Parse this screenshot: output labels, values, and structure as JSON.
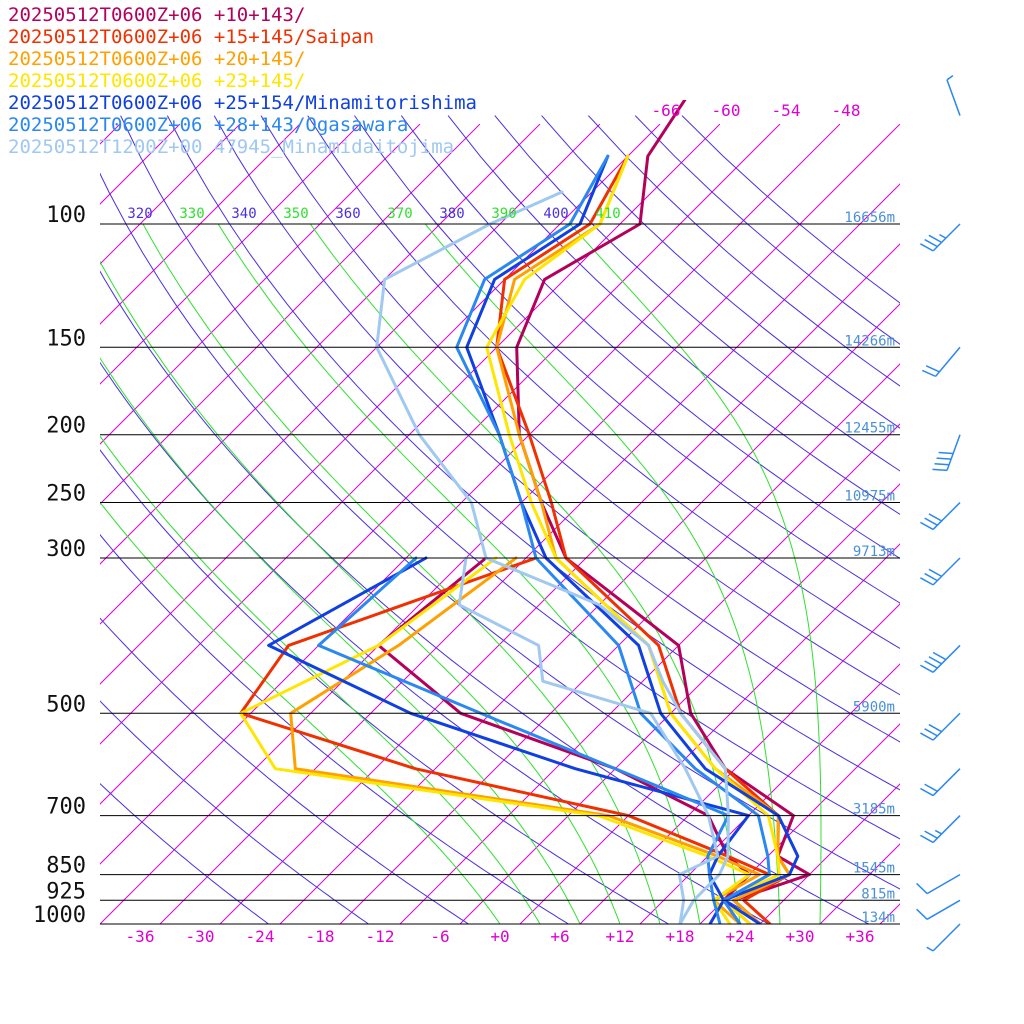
{
  "legend": [
    {
      "label": "20250512T0600Z+06 +10+143/",
      "color": "#b5005b"
    },
    {
      "label": "20250512T0600Z+06 +15+145/Saipan",
      "color": "#f03000"
    },
    {
      "label": "20250512T0600Z+06 +20+145/",
      "color": "#ffa000"
    },
    {
      "label": "20250512T0600Z+06 +23+145/",
      "color": "#ffe600"
    },
    {
      "label": "20250512T0600Z+06 +25+154/Minamitorishima",
      "color": "#1040e0"
    },
    {
      "label": "20250512T0600Z+06 +28+143/Ogasawara",
      "color": "#2a88f0"
    },
    {
      "label": "20250512T1200Z+00 47945_Minamidaitojima",
      "color": "#a0c8f0"
    }
  ],
  "colors": {
    "isotherm": "#e000d0",
    "dry_adiabat": "#4a30e0",
    "moist_adiabat": "#30e030",
    "height_label": "#4a90d8",
    "wind_barb": "#2a88f0"
  },
  "chart_data": {
    "type": "line",
    "subtype": "skew-T log-p sounding",
    "pressure_levels": [
      {
        "p": 100,
        "label": "100",
        "height": "16656m"
      },
      {
        "p": 150,
        "label": "150",
        "height": "14266m"
      },
      {
        "p": 200,
        "label": "200",
        "height": "12455m"
      },
      {
        "p": 250,
        "label": "250",
        "height": "10975m"
      },
      {
        "p": 300,
        "label": "300",
        "height": "9713m"
      },
      {
        "p": 500,
        "label": "500",
        "height": "5900m"
      },
      {
        "p": 700,
        "label": "700",
        "height": "3185m"
      },
      {
        "p": 850,
        "label": "850",
        "height": "1545m"
      },
      {
        "p": 925,
        "label": "925",
        "height": "815m"
      },
      {
        "p": 1000,
        "label": "1000",
        "height": "134m"
      }
    ],
    "bottom_temp_ticks": [
      "-36",
      "-30",
      "-24",
      "-18",
      "-12",
      "-6",
      "+0",
      "+6",
      "+12",
      "+18",
      "+24",
      "+30",
      "+36"
    ],
    "top_temp_ticks": [
      "-66",
      "-60",
      "-54",
      "-48"
    ],
    "theta_labels": [
      {
        "label": "320",
        "kind": "dry"
      },
      {
        "label": "330",
        "kind": "moist"
      },
      {
        "label": "340",
        "kind": "dry"
      },
      {
        "label": "350",
        "kind": "moist"
      },
      {
        "label": "360",
        "kind": "dry"
      },
      {
        "label": "370",
        "kind": "moist"
      },
      {
        "label": "380",
        "kind": "dry"
      },
      {
        "label": "390",
        "kind": "moist"
      },
      {
        "label": "400",
        "kind": "dry"
      },
      {
        "label": "410",
        "kind": "moist"
      }
    ],
    "axes": {
      "pressure_range_hPa": [
        1000,
        100
      ],
      "bottom_temp_range_C": [
        -40,
        40
      ],
      "pressure_scale": "log"
    },
    "series": [
      {
        "name": "20250512T0600Z+06 +10+143/",
        "temperature": [
          [
            1000,
            26
          ],
          [
            925,
            21
          ],
          [
            850,
            26
          ],
          [
            800,
            21
          ],
          [
            700,
            18.5
          ],
          [
            600,
            7
          ],
          [
            500,
            -2
          ],
          [
            400,
            -10
          ],
          [
            300,
            -30
          ],
          [
            250,
            -38
          ],
          [
            200,
            -47
          ],
          [
            150,
            -56
          ],
          [
            120,
            -60
          ],
          [
            100,
            -56
          ],
          [
            80,
            -62
          ],
          [
            60,
            -65
          ]
        ],
        "dewpoint": [
          [
            1000,
            24
          ],
          [
            925,
            20
          ],
          [
            850,
            20
          ],
          [
            800,
            16
          ],
          [
            700,
            10
          ],
          [
            600,
            -4
          ],
          [
            500,
            -25
          ],
          [
            400,
            -40
          ],
          [
            300,
            -38
          ]
        ]
      },
      {
        "name": "20250512T0600Z+06 +15+145/Saipan",
        "temperature": [
          [
            1000,
            27
          ],
          [
            925,
            22
          ],
          [
            850,
            24
          ],
          [
            800,
            21
          ],
          [
            700,
            17
          ],
          [
            600,
            7
          ],
          [
            500,
            -3
          ],
          [
            400,
            -12
          ],
          [
            300,
            -30
          ],
          [
            250,
            -37
          ],
          [
            200,
            -46
          ],
          [
            150,
            -58
          ],
          [
            120,
            -64
          ],
          [
            100,
            -61
          ],
          [
            80,
            -64
          ]
        ],
        "dewpoint": [
          [
            1000,
            25
          ],
          [
            925,
            20
          ],
          [
            850,
            22
          ],
          [
            800,
            16
          ],
          [
            700,
            2
          ],
          [
            600,
            -24
          ],
          [
            500,
            -47
          ],
          [
            400,
            -49
          ],
          [
            300,
            -33
          ]
        ]
      },
      {
        "name": "20250512T0600Z+06 +20+145/",
        "temperature": [
          [
            1000,
            26
          ],
          [
            925,
            21
          ],
          [
            850,
            24
          ],
          [
            800,
            21
          ],
          [
            700,
            17
          ],
          [
            600,
            6
          ],
          [
            500,
            -4
          ],
          [
            400,
            -13
          ],
          [
            300,
            -31
          ],
          [
            250,
            -38
          ],
          [
            200,
            -47
          ],
          [
            150,
            -58
          ],
          [
            120,
            -63
          ],
          [
            100,
            -60
          ],
          [
            80,
            -64
          ]
        ],
        "dewpoint": [
          [
            1000,
            24
          ],
          [
            925,
            19
          ],
          [
            850,
            21
          ],
          [
            800,
            15
          ],
          [
            700,
            0
          ],
          [
            600,
            -36
          ],
          [
            500,
            -42
          ],
          [
            400,
            -38
          ],
          [
            300,
            -35
          ]
        ]
      },
      {
        "name": "20250512T0600Z+06 +23+145/",
        "temperature": [
          [
            1000,
            25
          ],
          [
            925,
            20
          ],
          [
            850,
            23
          ],
          [
            800,
            21
          ],
          [
            700,
            16
          ],
          [
            600,
            6
          ],
          [
            500,
            -4
          ],
          [
            400,
            -13
          ],
          [
            300,
            -31
          ],
          [
            250,
            -39
          ],
          [
            200,
            -48
          ],
          [
            150,
            -59
          ],
          [
            120,
            -62
          ],
          [
            100,
            -60
          ],
          [
            80,
            -64
          ]
        ],
        "dewpoint": [
          [
            1000,
            23
          ],
          [
            925,
            19
          ],
          [
            850,
            20
          ],
          [
            800,
            14
          ],
          [
            700,
            -1
          ],
          [
            600,
            -38
          ],
          [
            500,
            -47
          ],
          [
            400,
            -40
          ],
          [
            300,
            -37
          ]
        ]
      },
      {
        "name": "20250512T0600Z+06 +25+154/Minamitorishima",
        "temperature": [
          [
            1000,
            26
          ],
          [
            925,
            20
          ],
          [
            850,
            24
          ],
          [
            800,
            23
          ],
          [
            700,
            17
          ],
          [
            600,
            5
          ],
          [
            500,
            -5
          ],
          [
            400,
            -14
          ],
          [
            300,
            -32
          ],
          [
            250,
            -40
          ],
          [
            200,
            -49
          ],
          [
            150,
            -61
          ],
          [
            120,
            -65
          ],
          [
            100,
            -62
          ],
          [
            80,
            -66
          ]
        ],
        "dewpoint": [
          [
            1000,
            21
          ],
          [
            925,
            20
          ],
          [
            850,
            16
          ],
          [
            800,
            15
          ],
          [
            700,
            14
          ],
          [
            600,
            -8
          ],
          [
            500,
            -30
          ],
          [
            400,
            -51
          ],
          [
            300,
            -44
          ]
        ]
      },
      {
        "name": "20250512T0600Z+06 +28+143/Ogasawara",
        "temperature": [
          [
            1000,
            24
          ],
          [
            925,
            20
          ],
          [
            850,
            22
          ],
          [
            800,
            20
          ],
          [
            700,
            15
          ],
          [
            600,
            4
          ],
          [
            500,
            -7
          ],
          [
            400,
            -16
          ],
          [
            300,
            -33
          ],
          [
            250,
            -40
          ],
          [
            200,
            -49
          ],
          [
            150,
            -62
          ],
          [
            120,
            -66
          ],
          [
            100,
            -63
          ],
          [
            80,
            -66
          ]
        ],
        "dewpoint": [
          [
            1000,
            22
          ],
          [
            925,
            19
          ],
          [
            850,
            16
          ],
          [
            800,
            14
          ],
          [
            700,
            12
          ],
          [
            600,
            -4
          ],
          [
            500,
            -23
          ],
          [
            400,
            -46
          ],
          [
            300,
            -45
          ]
        ]
      },
      {
        "name": "20250512T1200Z+00 47945_Minamidaitojima",
        "temperature": [
          [
            1000,
            18
          ],
          [
            925,
            17
          ],
          [
            850,
            17
          ],
          [
            800,
            16
          ],
          [
            700,
            12
          ],
          [
            600,
            7
          ],
          [
            500,
            -3
          ],
          [
            450,
            -8
          ],
          [
            400,
            -13
          ],
          [
            350,
            -22
          ],
          [
            300,
            -38
          ],
          [
            250,
            -45
          ],
          [
            200,
            -57
          ],
          [
            150,
            -70
          ],
          [
            120,
            -76
          ],
          [
            100,
            -71
          ],
          [
            90,
            -67
          ]
        ],
        "dewpoint": [
          [
            1000,
            18
          ],
          [
            925,
            16
          ],
          [
            850,
            13
          ],
          [
            800,
            15
          ],
          [
            700,
            10
          ],
          [
            600,
            3
          ],
          [
            500,
            -6
          ],
          [
            450,
            -20
          ],
          [
            400,
            -24
          ],
          [
            350,
            -36
          ],
          [
            300,
            -40
          ]
        ]
      }
    ],
    "wind_barbs": [
      {
        "p": 1000,
        "dir_deg": 225,
        "speed_kt": 5
      },
      {
        "p": 925,
        "dir_deg": 240,
        "speed_kt": 10
      },
      {
        "p": 850,
        "dir_deg": 240,
        "speed_kt": 10
      },
      {
        "p": 700,
        "dir_deg": 225,
        "speed_kt": 25
      },
      {
        "p": 600,
        "dir_deg": 225,
        "speed_kt": 20
      },
      {
        "p": 500,
        "dir_deg": 225,
        "speed_kt": 30
      },
      {
        "p": 400,
        "dir_deg": 225,
        "speed_kt": 40
      },
      {
        "p": 300,
        "dir_deg": 225,
        "speed_kt": 30
      },
      {
        "p": 250,
        "dir_deg": 225,
        "speed_kt": 30
      },
      {
        "p": 200,
        "dir_deg": 200,
        "speed_kt": 40
      },
      {
        "p": 150,
        "dir_deg": 220,
        "speed_kt": 20
      },
      {
        "p": 100,
        "dir_deg": 225,
        "speed_kt": 35
      },
      {
        "p": 70,
        "dir_deg": 340,
        "speed_kt": 5
      }
    ],
    "grid": true,
    "legend_position": "top-left"
  }
}
